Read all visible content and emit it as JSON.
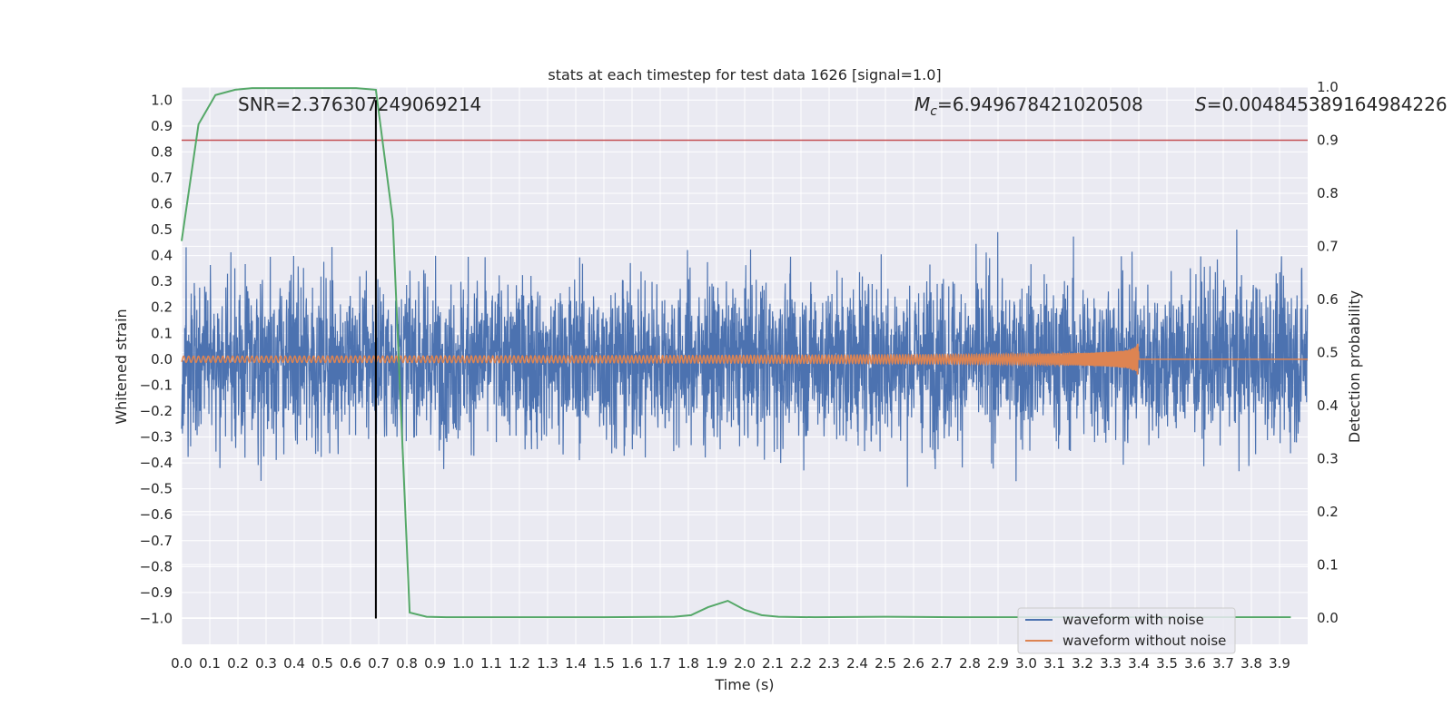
{
  "chart_data": {
    "type": "line",
    "title": "stats at each timestep for test data 1626 [signal=1.0]",
    "xlabel": "Time (s)",
    "ylabel_left": "Whitened strain",
    "ylabel_right": "Detection probability",
    "xlim": [
      0.0,
      4.0
    ],
    "ylim_left": [
      -1.1,
      1.05
    ],
    "ylim_right": [
      -0.05,
      1.0
    ],
    "xticks": [
      "0.0",
      "0.1",
      "0.2",
      "0.3",
      "0.4",
      "0.5",
      "0.6",
      "0.7",
      "0.8",
      "0.9",
      "1.0",
      "1.1",
      "1.2",
      "1.3",
      "1.4",
      "1.5",
      "1.6",
      "1.7",
      "1.8",
      "1.9",
      "2.0",
      "2.1",
      "2.2",
      "2.3",
      "2.4",
      "2.5",
      "2.6",
      "2.7",
      "2.8",
      "2.9",
      "3.0",
      "3.1",
      "3.2",
      "3.3",
      "3.4",
      "3.5",
      "3.6",
      "3.7",
      "3.8",
      "3.9"
    ],
    "yticks_left": [
      "1.0",
      "0.9",
      "0.8",
      "0.7",
      "0.6",
      "0.5",
      "0.4",
      "0.3",
      "0.2",
      "0.1",
      "0.0",
      "-0.1",
      "-0.2",
      "-0.3",
      "-0.4",
      "-0.5",
      "-0.6",
      "-0.7",
      "-0.8",
      "-0.9",
      "-1.0"
    ],
    "yticks_right": [
      "1.0",
      "0.9",
      "0.8",
      "0.7",
      "0.6",
      "0.5",
      "0.4",
      "0.3",
      "0.2",
      "0.1",
      "0.0"
    ],
    "annotations": {
      "snr": "SNR=2.376307249069214",
      "mc_symbol": "M",
      "mc_sub": "c",
      "mc_value": "=6.949678421020508",
      "s_symbol": "S",
      "s_value": "=0.004845389164984226"
    },
    "legend": {
      "placement": "lower-right",
      "entries": [
        "waveform with noise",
        "waveform without noise"
      ]
    },
    "threshold_probability": 0.9,
    "vertical_marker_time": 0.69,
    "detection_probability": {
      "name": "Detection probability",
      "x": [
        0.0,
        0.06,
        0.12,
        0.19,
        0.25,
        0.31,
        0.37,
        0.44,
        0.5,
        0.56,
        0.62,
        0.69,
        0.75,
        0.81,
        0.87,
        0.94,
        1.0,
        1.25,
        1.5,
        1.75,
        1.81,
        1.87,
        1.94,
        2.0,
        2.06,
        2.12,
        2.25,
        2.5,
        2.75,
        3.0,
        3.25,
        3.5,
        3.75,
        3.94
      ],
      "y": [
        0.71,
        0.93,
        0.985,
        0.995,
        0.998,
        0.998,
        0.998,
        0.998,
        0.998,
        0.998,
        0.998,
        0.995,
        0.75,
        0.01,
        0.002,
        0.001,
        0.001,
        0.001,
        0.001,
        0.002,
        0.005,
        0.02,
        0.032,
        0.015,
        0.005,
        0.002,
        0.001,
        0.002,
        0.001,
        0.001,
        0.001,
        0.001,
        0.001,
        0.001
      ]
    },
    "colors": {
      "noisy": "#4c72b0",
      "clean": "#dd8452",
      "probability": "#55a868",
      "threshold": "#c44e52",
      "marker": "#000000",
      "axes_bg": "#eaeaf2",
      "grid": "#ffffff"
    }
  }
}
